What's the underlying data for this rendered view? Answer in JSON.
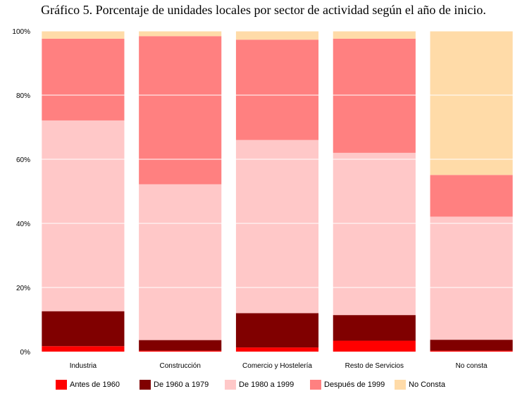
{
  "title": "Gráfico 5. Porcentaje de unidades locales por sector de actividad según el año de inicio.",
  "chart_data": {
    "type": "bar",
    "stacked": true,
    "title": "Gráfico 5. Porcentaje de unidades locales por sector de actividad según el año de inicio.",
    "categories": [
      "Industria",
      "Construcción",
      "Comercio y Hostelería",
      "Resto de Servicios",
      "No consta"
    ],
    "series": [
      {
        "name": "Antes de 1960",
        "color": "#ff0000",
        "values": [
          1.7,
          0.3,
          1.3,
          3.4,
          0.3
        ]
      },
      {
        "name": "De 1960 a 1979",
        "color": "#800000",
        "values": [
          10.9,
          3.3,
          10.7,
          8.0,
          3.4
        ]
      },
      {
        "name": "De 1980 a 1999",
        "color": "#ffc8c8",
        "values": [
          59.5,
          48.6,
          54.0,
          50.6,
          38.4
        ]
      },
      {
        "name": "Después de 1999",
        "color": "#ff8080",
        "values": [
          25.5,
          46.2,
          31.3,
          35.6,
          13.0
        ]
      },
      {
        "name": "No Consta",
        "color": "#ffdba8",
        "values": [
          2.4,
          1.6,
          2.7,
          2.4,
          44.9
        ]
      }
    ],
    "ylim": [
      0,
      100
    ],
    "yticks": [
      "0%",
      "20%",
      "40%",
      "60%",
      "80%",
      "100%"
    ],
    "ytick_values": [
      0,
      20,
      40,
      60,
      80,
      100
    ],
    "grid": true,
    "legend_position": "bottom"
  }
}
